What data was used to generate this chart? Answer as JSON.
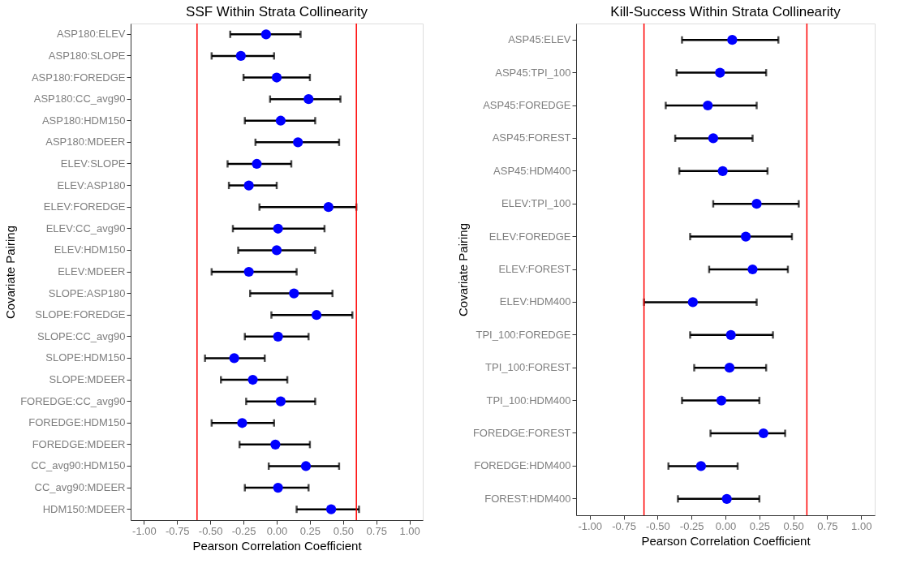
{
  "chart_data": [
    {
      "type": "scatter",
      "title": "SSF Within Strata Collinearity",
      "xlabel": "Pearson Correlation Coefficient",
      "ylabel": "Covariate Pairing",
      "orientation": "horizontal",
      "categories": [
        "ASP180:ELEV",
        "ASP180:SLOPE",
        "ASP180:FOREDGE",
        "ASP180:CC_avg90",
        "ASP180:HDM150",
        "ASP180:MDEER",
        "ELEV:SLOPE",
        "ELEV:ASP180",
        "ELEV:FOREDGE",
        "ELEV:CC_avg90",
        "ELEV:HDM150",
        "ELEV:MDEER",
        "SLOPE:ASP180",
        "SLOPE:FOREDGE",
        "SLOPE:CC_avg90",
        "SLOPE:HDM150",
        "SLOPE:MDEER",
        "FOREDGE:CC_avg90",
        "FOREDGE:HDM150",
        "FOREDGE:MDEER",
        "CC_avg90:HDM150",
        "CC_avg90:MDEER",
        "HDM150:MDEER"
      ],
      "series": [
        {
          "color": "#0000ff",
          "values": [
            -0.08,
            -0.27,
            0.0,
            0.24,
            0.03,
            0.16,
            -0.15,
            -0.21,
            0.39,
            0.01,
            0.0,
            -0.21,
            0.13,
            0.3,
            0.01,
            -0.32,
            -0.18,
            0.03,
            -0.26,
            -0.01,
            0.22,
            0.01,
            0.41
          ],
          "errors": [
            [
              -0.35,
              0.18
            ],
            [
              -0.49,
              -0.02
            ],
            [
              -0.25,
              0.25
            ],
            [
              -0.05,
              0.48
            ],
            [
              -0.24,
              0.29
            ],
            [
              -0.16,
              0.47
            ],
            [
              -0.37,
              0.11
            ],
            [
              -0.36,
              0.0
            ],
            [
              -0.13,
              0.6
            ],
            [
              -0.33,
              0.36
            ],
            [
              -0.29,
              0.29
            ],
            [
              -0.49,
              0.15
            ],
            [
              -0.2,
              0.42
            ],
            [
              -0.04,
              0.57
            ],
            [
              -0.24,
              0.24
            ],
            [
              -0.54,
              -0.09
            ],
            [
              -0.42,
              0.08
            ],
            [
              -0.23,
              0.29
            ],
            [
              -0.49,
              -0.02
            ],
            [
              -0.28,
              0.25
            ],
            [
              -0.06,
              0.47
            ],
            [
              -0.24,
              0.24
            ],
            [
              0.15,
              0.62
            ]
          ]
        }
      ],
      "xlim": [
        -1.1,
        1.1
      ],
      "xticks": [
        {
          "value": -1,
          "label": "-1.00"
        },
        {
          "value": -0.75,
          "label": "-0.75"
        },
        {
          "value": -0.5,
          "label": "-0.50"
        },
        {
          "value": -0.25,
          "label": "-0.25"
        },
        {
          "value": 0,
          "label": "0.00"
        },
        {
          "value": 0.25,
          "label": "0.25"
        },
        {
          "value": 0.5,
          "label": "0.50"
        },
        {
          "value": 0.75,
          "label": "0.75"
        },
        {
          "value": 1,
          "label": "1.00"
        }
      ],
      "ref_lines": [
        {
          "axis": "x",
          "value": -0.6,
          "color": "#ff0000"
        },
        {
          "axis": "x",
          "value": 0.6,
          "color": "#ff0000"
        }
      ],
      "marker": "circle",
      "grid": false,
      "legend": false
    },
    {
      "type": "scatter",
      "title": "Kill-Success Within Strata Collinearity",
      "xlabel": "Pearson Correlation Coefficient",
      "ylabel": "Covariate Pairing",
      "orientation": "horizontal",
      "categories": [
        "ASP45:ELEV",
        "ASP45:TPI_100",
        "ASP45:FOREDGE",
        "ASP45:FOREST",
        "ASP45:HDM400",
        "ELEV:TPI_100",
        "ELEV:FOREDGE",
        "ELEV:FOREST",
        "ELEV:HDM400",
        "TPI_100:FOREDGE",
        "TPI_100:FOREST",
        "TPI_100:HDM400",
        "FOREDGE:FOREST",
        "FOREDGE:HDM400",
        "FOREST:HDM400"
      ],
      "series": [
        {
          "color": "#0000ff",
          "values": [
            0.05,
            -0.04,
            -0.13,
            -0.09,
            -0.02,
            0.23,
            0.15,
            0.2,
            -0.24,
            0.04,
            0.03,
            -0.03,
            0.28,
            -0.18,
            0.01
          ],
          "errors": [
            [
              -0.32,
              0.39
            ],
            [
              -0.36,
              0.3
            ],
            [
              -0.44,
              0.23
            ],
            [
              -0.37,
              0.2
            ],
            [
              -0.34,
              0.31
            ],
            [
              -0.09,
              0.54
            ],
            [
              -0.26,
              0.49
            ],
            [
              -0.12,
              0.46
            ],
            [
              -0.6,
              0.23
            ],
            [
              -0.26,
              0.35
            ],
            [
              -0.23,
              0.3
            ],
            [
              -0.32,
              0.25
            ],
            [
              -0.11,
              0.44
            ],
            [
              -0.42,
              0.09
            ],
            [
              -0.35,
              0.25
            ]
          ]
        }
      ],
      "xlim": [
        -1.1,
        1.1
      ],
      "xticks": [
        {
          "value": -1,
          "label": "-1.00"
        },
        {
          "value": -0.75,
          "label": "-0.75"
        },
        {
          "value": -0.5,
          "label": "-0.50"
        },
        {
          "value": -0.25,
          "label": "-0.25"
        },
        {
          "value": 0,
          "label": "0.00"
        },
        {
          "value": 0.25,
          "label": "0.25"
        },
        {
          "value": 0.5,
          "label": "0.50"
        },
        {
          "value": 0.75,
          "label": "0.75"
        },
        {
          "value": 1,
          "label": "1.00"
        }
      ],
      "ref_lines": [
        {
          "axis": "x",
          "value": -0.6,
          "color": "#ff0000"
        },
        {
          "axis": "x",
          "value": 0.6,
          "color": "#ff0000"
        }
      ],
      "marker": "circle",
      "grid": false,
      "legend": false
    }
  ]
}
